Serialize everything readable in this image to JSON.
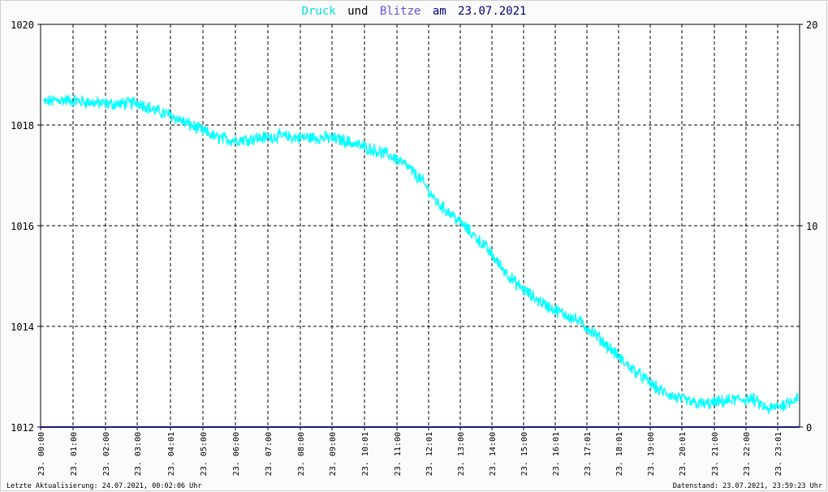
{
  "title": {
    "series1": "Druck",
    "connector": "und",
    "series2": "Blitze",
    "date_prefix": "am",
    "date": "23.07.2021"
  },
  "footer": {
    "left": "Letzte Aktualisierung: 24.07.2021, 00:02:06 Uhr",
    "right": "Datenstand: 23.07.2021, 23:59:23 Uhr"
  },
  "colors": {
    "pressure": "#00ffff",
    "lightning": "#6a4fd8",
    "baseline": "#1a1a80",
    "title_date": "#000080",
    "grid": "#000000",
    "axis_text": "#000000"
  },
  "chart_data": {
    "type": "line",
    "title": "Druck und Blitze am 23.07.2021",
    "grid": true,
    "x_ticks": [
      "23. 00:00",
      "23. 01:00",
      "23. 02:00",
      "23. 03:00",
      "23. 04:01",
      "23. 05:00",
      "23. 06:00",
      "23. 07:00",
      "23. 08:00",
      "23. 09:00",
      "23. 10:01",
      "23. 11:00",
      "23. 12:01",
      "23. 13:00",
      "23. 14:00",
      "23. 15:00",
      "23. 16:01",
      "23. 17:01",
      "23. 18:01",
      "23. 19:00",
      "23. 20:01",
      "23. 21:00",
      "23. 22:00",
      "23. 23:01"
    ],
    "y_left": {
      "min": 1012,
      "max": 1020,
      "ticks": [
        "1012",
        "1014",
        "1016",
        "1018",
        "1020"
      ]
    },
    "y_right": {
      "min": 0,
      "max": 20,
      "ticks": [
        "0",
        "10",
        "20"
      ]
    },
    "series": [
      {
        "name": "Druck",
        "axis": "left",
        "hours": [
          0,
          0.5,
          1,
          1.5,
          2,
          2.5,
          3,
          3.5,
          4,
          4.5,
          5,
          5.5,
          6,
          6.5,
          7,
          7.5,
          8,
          8.5,
          9,
          9.5,
          10,
          10.5,
          11,
          11.5,
          12,
          12.5,
          13,
          13.5,
          14,
          14.5,
          15,
          15.5,
          16,
          16.5,
          17,
          17.5,
          18,
          18.5,
          19,
          19.5,
          20,
          20.5,
          21,
          21.5,
          22,
          22.5,
          23,
          23.5,
          23.95
        ],
        "values": [
          1018.45,
          1018.5,
          1018.48,
          1018.45,
          1018.42,
          1018.42,
          1018.45,
          1018.3,
          1018.2,
          1018.05,
          1017.9,
          1017.75,
          1017.7,
          1017.72,
          1017.75,
          1017.78,
          1017.75,
          1017.75,
          1017.75,
          1017.7,
          1017.6,
          1017.5,
          1017.4,
          1017.2,
          1016.9,
          1016.45,
          1016.2,
          1015.9,
          1015.6,
          1015.2,
          1014.85,
          1014.6,
          1014.4,
          1014.25,
          1014.1,
          1013.85,
          1013.55,
          1013.25,
          1013.0,
          1012.75,
          1012.6,
          1012.5,
          1012.45,
          1012.5,
          1012.55,
          1012.55,
          1012.35,
          1012.45,
          1012.6
        ]
      },
      {
        "name": "Blitze",
        "axis": "right",
        "hours": [
          0,
          23.95
        ],
        "values": [
          0,
          0
        ]
      }
    ]
  }
}
